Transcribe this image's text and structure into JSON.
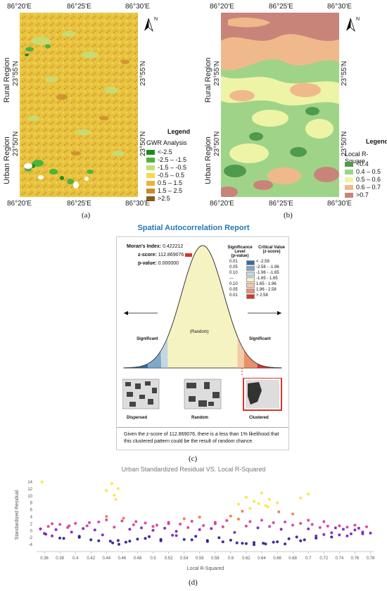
{
  "panel_a": {
    "top_coords": [
      "86°20'E",
      "86°25'E",
      "86°30'E"
    ],
    "bottom_coords": [
      "86°20'E",
      "86°25'E",
      "86°30'E"
    ],
    "lat_coords": [
      "23°55'N",
      "23°50'N"
    ],
    "rural_label": "Rural Region",
    "urban_label": "Urban Region",
    "north": "N",
    "legend_title": "Legend",
    "legend_subtitle": "GWR Analysis",
    "legend": [
      {
        "label": "<-2.5",
        "color": "#1e8a1e"
      },
      {
        "label": "-2.5 – -1.5",
        "color": "#4cb43c"
      },
      {
        "label": "-1.5 – -0.5",
        "color": "#c3e07a"
      },
      {
        "label": "-0.5 – 0.5",
        "color": "#f6d84a"
      },
      {
        "label": "0.5 – 1.5",
        "color": "#e6b43a"
      },
      {
        "label": "1.5 – 2.5",
        "color": "#c98a2a"
      },
      {
        "label": ">2.5",
        "color": "#8a5a1e"
      }
    ],
    "caption": "(a)"
  },
  "panel_b": {
    "top_coords": [
      "86°20'E",
      "86°25'E",
      "86°30'E"
    ],
    "bottom_coords": [
      "86°20'E",
      "86°25'E",
      "86°30'E"
    ],
    "lat_coords": [
      "23°55'N",
      "23°50'N"
    ],
    "rural_label": "Rural Region",
    "urban_label": "Urban Region",
    "north": "N",
    "legend_title": "Legend",
    "legend_subtitle": "Local R-Square",
    "legend": [
      {
        "label": "<0.4",
        "color": "#4f9a4c"
      },
      {
        "label": "0.4 – 0.5",
        "color": "#9fd488"
      },
      {
        "label": "0.5 – 0.6",
        "color": "#eef4a6"
      },
      {
        "label": "0.6 – 0.7",
        "color": "#f0b98c"
      },
      {
        "label": ">0.7",
        "color": "#c98479"
      }
    ],
    "caption": "(b)"
  },
  "panel_c": {
    "title": "Spatial Autocorrelation Report",
    "morans_label": "Moran's Index",
    "morans_value": "0.422212",
    "z_label": "z-score",
    "z_value": "112.869076",
    "p_label": "p-value",
    "p_value": "0.000000",
    "sig_header_1": "Significance Level",
    "sig_header_2": "(p-value)",
    "crit_header_1": "Critical Value",
    "crit_header_2": "(z-score)",
    "sig_rows": [
      {
        "p": "0.01",
        "z": "< -2.58",
        "color": "#2e6da4"
      },
      {
        "p": "0.05",
        "z": "-2.58 - -1.96",
        "color": "#7fa8c9"
      },
      {
        "p": "0.10",
        "z": "-1.96 - -1.65",
        "color": "#c4d6e4"
      },
      {
        "p": "---",
        "z": "-1.65 - 1.65",
        "color": "#f6f3c2"
      },
      {
        "p": "0.10",
        "z": "1.65 - 1.96",
        "color": "#f4c9a8"
      },
      {
        "p": "0.05",
        "z": "1.96 - 2.58",
        "color": "#ea8f6a"
      },
      {
        "p": "0.01",
        "z": "> 2.58",
        "color": "#d9352b"
      }
    ],
    "significant_left": "Significant",
    "random_label": "(Random)",
    "significant_right": "Significant",
    "pattern_labels": [
      "Dispersed",
      "Random",
      "Clustered"
    ],
    "footer_text": "Given the z-score of 112.869076, there is a less than 1% likelihood that this clustered pattern could be the result of random chance.",
    "caption": "(c)"
  },
  "panel_d": {
    "caption": "(d)"
  },
  "chart_data": {
    "type": "scatter",
    "title": "Urban Standardized Residual VS. Local R-Squared",
    "xlabel": "Local R-Squared",
    "ylabel": "Standardized Residual",
    "xlim": [
      0.35,
      0.785
    ],
    "ylim": [
      -6,
      15
    ],
    "x_ticks": [
      "0.36",
      "0.38",
      "0.4",
      "0.42",
      "0.44",
      "0.46",
      "0.48",
      "0.5",
      "0.52",
      "0.54",
      "0.56",
      "0.58",
      "0.6",
      "0.62",
      "0.64",
      "0.66",
      "0.68",
      "0.7",
      "0.72",
      "0.74",
      "0.76",
      "0.78"
    ],
    "y_ticks": [
      "-4",
      "-2",
      "0",
      "2",
      "4",
      "6",
      "8",
      "10",
      "12",
      "14"
    ],
    "colormap": [
      "#2a1a8c",
      "#7a1fb0",
      "#d03a9a",
      "#f2743e",
      "#f7e63a"
    ],
    "series": [
      {
        "x": [
          0.355,
          0.36,
          0.365,
          0.37,
          0.375,
          0.38,
          0.385,
          0.39,
          0.395,
          0.4,
          0.405,
          0.41,
          0.415,
          0.42,
          0.425,
          0.43,
          0.435,
          0.44,
          0.445,
          0.45,
          0.455,
          0.46,
          0.465,
          0.47,
          0.475,
          0.48,
          0.485,
          0.49,
          0.495,
          0.5,
          0.505,
          0.51,
          0.515,
          0.52,
          0.525,
          0.53,
          0.535,
          0.54,
          0.545,
          0.55,
          0.555,
          0.56,
          0.565,
          0.57,
          0.575,
          0.58,
          0.585,
          0.59,
          0.595,
          0.6,
          0.605,
          0.61,
          0.615,
          0.62,
          0.625,
          0.63,
          0.635,
          0.64,
          0.645,
          0.65,
          0.655,
          0.66,
          0.665,
          0.67,
          0.675,
          0.68,
          0.685,
          0.69,
          0.695,
          0.7,
          0.705,
          0.71,
          0.715,
          0.72,
          0.725,
          0.73,
          0.735,
          0.74,
          0.745,
          0.75,
          0.755,
          0.76,
          0.765,
          0.77,
          0.775,
          0.78,
          0.362,
          0.37,
          0.38,
          0.392,
          0.405,
          0.418,
          0.43,
          0.44,
          0.448,
          0.452,
          0.456,
          0.462,
          0.47,
          0.478,
          0.49,
          0.5,
          0.51,
          0.52,
          0.53,
          0.54,
          0.55,
          0.56,
          0.57,
          0.58,
          0.59,
          0.6,
          0.608,
          0.615,
          0.62,
          0.625,
          0.63,
          0.636,
          0.642,
          0.648,
          0.655,
          0.662,
          0.67,
          0.68,
          0.69,
          0.7,
          0.71,
          0.72,
          0.73,
          0.74,
          0.75,
          0.76,
          0.77,
          0.357,
          0.44,
          0.447,
          0.45,
          0.455,
          0.62,
          0.63,
          0.64,
          0.645,
          0.65,
          0.69,
          0.7,
          0.61,
          0.66
        ],
        "y": [
          0.5,
          -0.8,
          1.2,
          -1.5,
          0.3,
          1.8,
          -2.2,
          0.9,
          -0.4,
          2.1,
          -1.9,
          0.6,
          1.4,
          -2.6,
          0.2,
          2.5,
          -1.2,
          3.1,
          -3.0,
          1.0,
          -2.8,
          2.8,
          -3.3,
          0.4,
          1.7,
          -2.4,
          0.8,
          2.2,
          -1.7,
          0.1,
          1.6,
          -2.9,
          0.7,
          2.4,
          -1.3,
          -0.2,
          1.9,
          -2.5,
          0.9,
          2.7,
          -1.6,
          0.3,
          1.5,
          -3.1,
          0.6,
          2.0,
          -2.0,
          1.1,
          2.9,
          -2.7,
          -0.5,
          3.3,
          -3.6,
          1.3,
          2.6,
          -3.4,
          0.8,
          3.0,
          -3.8,
          1.2,
          2.3,
          -3.2,
          0.4,
          2.5,
          -2.3,
          1.6,
          -1.8,
          2.1,
          -2.6,
          0.5,
          1.8,
          -1.5,
          0.9,
          -1.1,
          1.3,
          -0.6,
          0.8,
          -1.2,
          0.4,
          1.0,
          -0.9,
          0.2,
          0.7,
          -0.4,
          1.1,
          -0.7,
          -1.0,
          2.0,
          -2.1,
          1.4,
          -1.6,
          2.3,
          -2.9,
          4.1,
          -3.5,
          9.0,
          -3.9,
          3.6,
          -3.0,
          2.6,
          -2.2,
          1.2,
          -2.5,
          2.0,
          -1.4,
          3.4,
          -2.6,
          3.9,
          -2.8,
          2.4,
          -3.2,
          4.2,
          -3.5,
          5.6,
          -3.7,
          6.4,
          -4.0,
          7.8,
          -3.6,
          6.8,
          -3.3,
          5.4,
          -3.8,
          4.8,
          -2.9,
          3.0,
          -2.1,
          2.6,
          -1.8,
          1.4,
          -1.5,
          1.6,
          -0.9,
          14.0,
          11.5,
          13.5,
          10.2,
          12.1,
          9.6,
          8.4,
          10.8,
          7.2,
          9.0,
          9.4,
          10.5,
          7.6,
          8.0
        ]
      }
    ]
  }
}
